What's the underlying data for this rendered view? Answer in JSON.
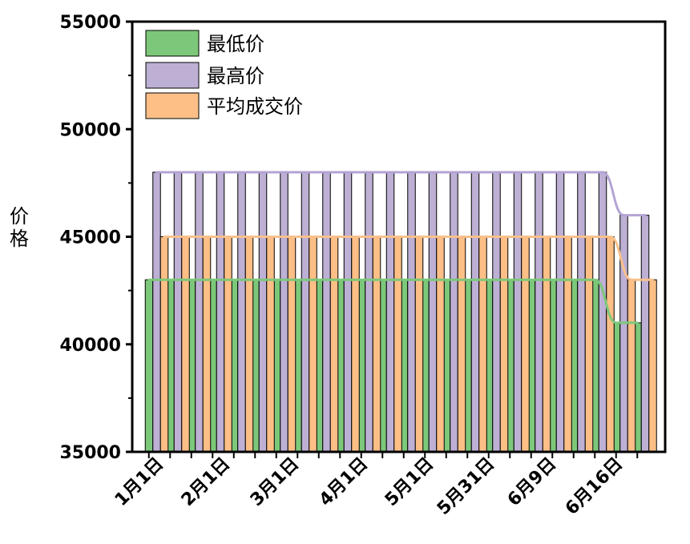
{
  "chart_data": {
    "type": "bar",
    "title": "",
    "xlabel": "",
    "ylabel": "价格",
    "ylim": [
      35000,
      55000
    ],
    "yticks": [
      35000,
      40000,
      45000,
      50000,
      55000
    ],
    "ytick_labels": [
      "35000",
      "40000",
      "45000",
      "50000",
      "55000"
    ],
    "xtick_labels": [
      "1月1日",
      "2月1日",
      "3月1日",
      "4月1日",
      "5月1日",
      "5月31日",
      "6月9日",
      "6月16日"
    ],
    "legend": {
      "position": "top-left",
      "entries": [
        "最低价",
        "最高价",
        "平均成交价"
      ]
    },
    "overlay": "smoothed lines connecting bar tops for each series",
    "category_count": 24,
    "series": [
      {
        "name": "最低价",
        "color": "#7cc87a",
        "line_color": "#7cc87a",
        "values": [
          43000,
          43000,
          43000,
          43000,
          43000,
          43000,
          43000,
          43000,
          43000,
          43000,
          43000,
          43000,
          43000,
          43000,
          43000,
          43000,
          43000,
          43000,
          43000,
          43000,
          43000,
          43000,
          41000,
          41000
        ]
      },
      {
        "name": "最高价",
        "color": "#bdb0d4",
        "line_color": "#b3a4d4",
        "values": [
          48000,
          48000,
          48000,
          48000,
          48000,
          48000,
          48000,
          48000,
          48000,
          48000,
          48000,
          48000,
          48000,
          48000,
          48000,
          48000,
          48000,
          48000,
          48000,
          48000,
          48000,
          48000,
          46000,
          46000
        ]
      },
      {
        "name": "平均成交价",
        "color": "#fdbf86",
        "line_color": "#f9c08b",
        "values": [
          45000,
          45000,
          45000,
          45000,
          45000,
          45000,
          45000,
          45000,
          45000,
          45000,
          45000,
          45000,
          45000,
          45000,
          45000,
          45000,
          45000,
          45000,
          45000,
          45000,
          45000,
          45000,
          43000,
          43000
        ]
      }
    ]
  }
}
